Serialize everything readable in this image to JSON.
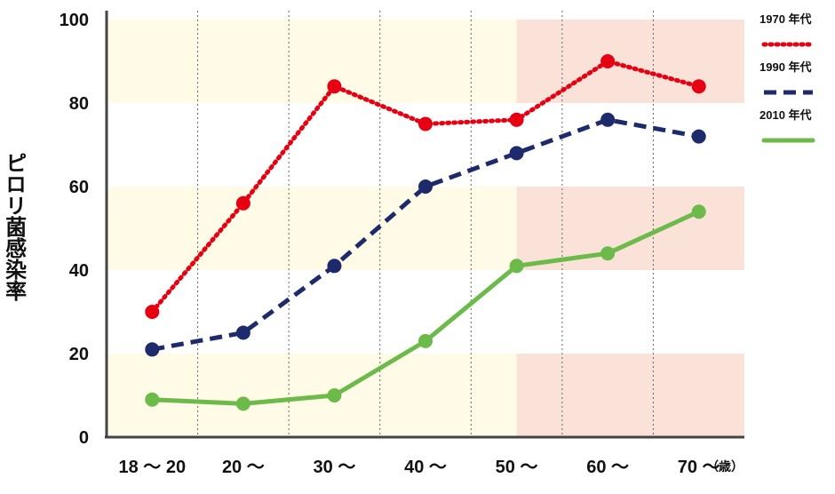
{
  "chart_data": {
    "type": "line",
    "title": "",
    "xlabel": "",
    "ylabel": "ピロリ菌感染率",
    "x_unit": "（歳）",
    "categories": [
      "18 ～ 20",
      "20 ～",
      "30 ～",
      "40 ～",
      "50 ～",
      "60 ～",
      "70 ～"
    ],
    "yticks": [
      "0",
      "20",
      "40",
      "60",
      "80",
      "100"
    ],
    "ylim": [
      0,
      100
    ],
    "grid": "vertical dotted lines between age groups",
    "legend_position": "right",
    "series": [
      {
        "name": "1970 年代",
        "color": "#e60012",
        "style": "dotted",
        "values": [
          30,
          56,
          84,
          75,
          76,
          90,
          84
        ]
      },
      {
        "name": "1990 年代",
        "color": "#1d2a6b",
        "style": "dashed",
        "values": [
          21,
          25,
          41,
          60,
          68,
          76,
          72
        ]
      },
      {
        "name": "2010 年代",
        "color": "#6cba4a",
        "style": "solid",
        "values": [
          9,
          8,
          10,
          23,
          41,
          44,
          54
        ]
      }
    ],
    "background_bands": {
      "upper_age_color": "#fbe2d8",
      "lower_age_color": "#fffbe6"
    }
  }
}
